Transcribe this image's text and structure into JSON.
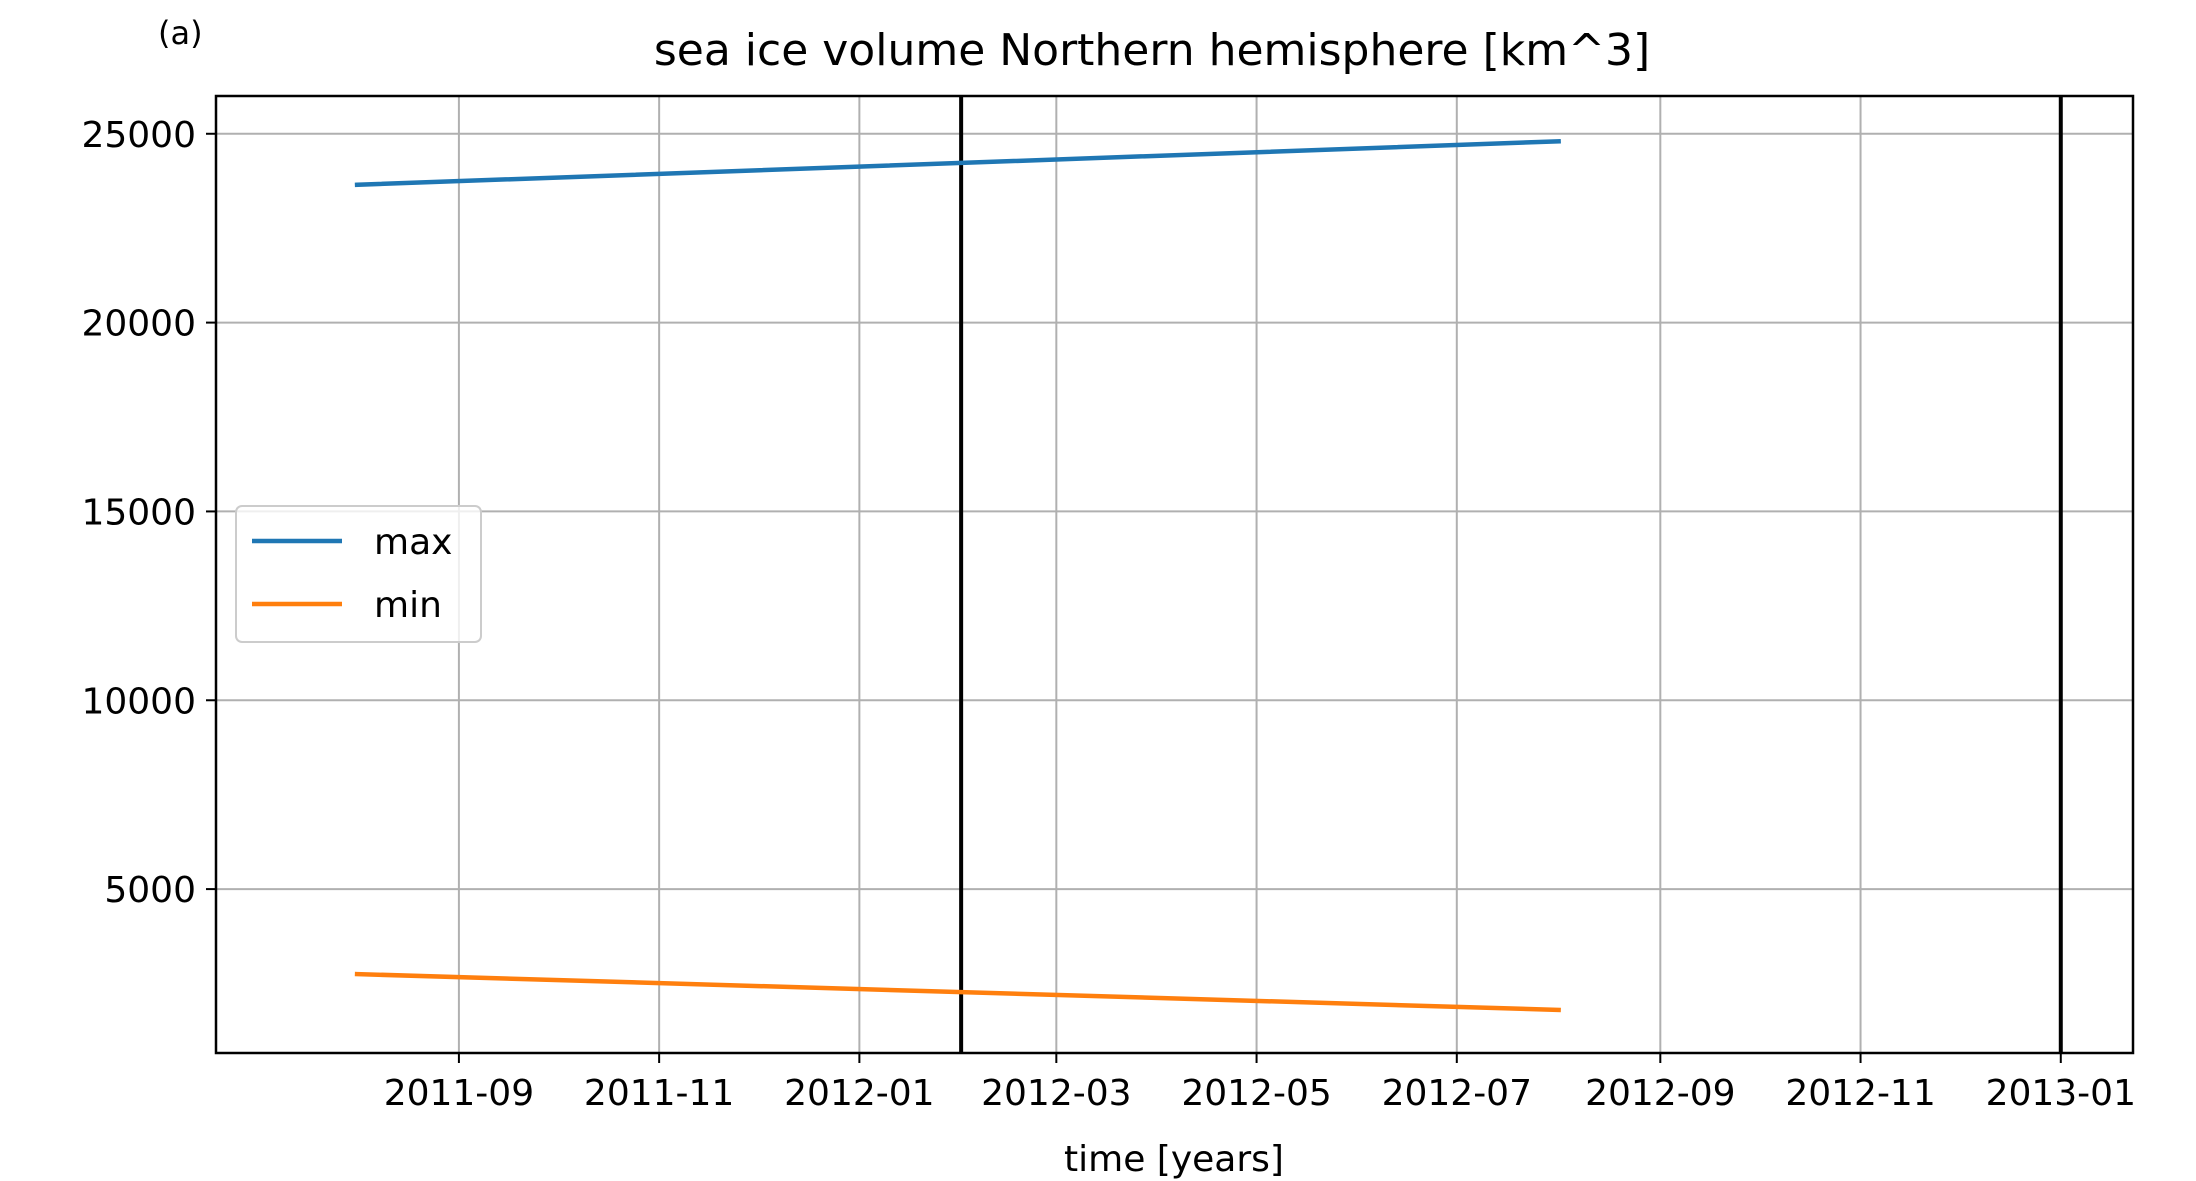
{
  "panel_label": "(a)",
  "chart_data": {
    "type": "line",
    "title": "sea ice volume Northern hemisphere [km^3]",
    "xlabel": "time [years]",
    "ylabel": "",
    "x_is_date": true,
    "xlim": [
      "2011-06-19",
      "2013-01-23"
    ],
    "ylim": [
      660,
      26000
    ],
    "xticks": [
      "2011-09-01",
      "2011-11-01",
      "2012-01-01",
      "2012-03-01",
      "2012-05-01",
      "2012-07-01",
      "2012-09-01",
      "2012-11-01",
      "2013-01-01"
    ],
    "xtick_labels": [
      "2011-09",
      "2011-11",
      "2012-01",
      "2012-03",
      "2012-05",
      "2012-07",
      "2012-09",
      "2012-11",
      "2013-01"
    ],
    "yticks": [
      5000,
      10000,
      15000,
      20000,
      25000
    ],
    "ytick_labels": [
      "5000",
      "10000",
      "15000",
      "20000",
      "25000"
    ],
    "grid": true,
    "legend_position": "center-left",
    "series": [
      {
        "name": "max",
        "color": "#1f77b4",
        "x": [
          "2011-08-01",
          "2012-08-01"
        ],
        "y": [
          23650,
          24800
        ]
      },
      {
        "name": "min",
        "color": "#ff7f0e",
        "x": [
          "2011-08-01",
          "2012-08-01"
        ],
        "y": [
          2750,
          1800
        ]
      }
    ],
    "vlines": [
      {
        "x": "2012-02-01",
        "color": "#000000"
      },
      {
        "x": "2013-01-01",
        "color": "#000000"
      }
    ]
  }
}
